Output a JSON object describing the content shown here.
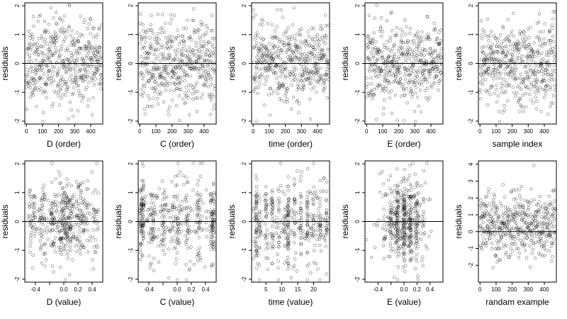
{
  "chart_data": [
    {
      "type": "scatter",
      "xlabel": "D (order)",
      "ylabel": "residuals",
      "xlim": [
        -10,
        475
      ],
      "ylim": [
        -2.1,
        2.1
      ],
      "xticks": [
        0,
        100,
        200,
        300,
        400
      ],
      "xtick_labels": [
        "0",
        "100",
        "200",
        "300",
        "400"
      ],
      "yticks": [
        -2,
        -1,
        0,
        1,
        2
      ],
      "ytick_labels": [
        "-2",
        "-1",
        "0",
        "1",
        "2"
      ],
      "hline": 0,
      "n_points": 470,
      "gen": {
        "kind": "index",
        "seed": 11,
        "sd": 0.72
      }
    },
    {
      "type": "scatter",
      "xlabel": "C (order)",
      "ylabel": "residuals",
      "xlim": [
        -10,
        475
      ],
      "ylim": [
        -2.1,
        2.1
      ],
      "xticks": [
        0,
        100,
        200,
        300,
        400
      ],
      "xtick_labels": [
        "0",
        "100",
        "200",
        "300",
        "400"
      ],
      "yticks": [
        -2,
        -1,
        0,
        1,
        2
      ],
      "ytick_labels": [
        "-2",
        "-1",
        "0",
        "1",
        "2"
      ],
      "hline": 0,
      "n_points": 470,
      "gen": {
        "kind": "index",
        "seed": 12,
        "sd": 0.72
      }
    },
    {
      "type": "scatter",
      "xlabel": "time (order)",
      "ylabel": "residuals",
      "xlim": [
        -10,
        475
      ],
      "ylim": [
        -2.1,
        2.1
      ],
      "xticks": [
        0,
        100,
        200,
        300,
        400
      ],
      "xtick_labels": [
        "0",
        "100",
        "200",
        "300",
        "400"
      ],
      "yticks": [
        -2,
        -1,
        0,
        1,
        2
      ],
      "ytick_labels": [
        "-2",
        "-1",
        "0",
        "1",
        "2"
      ],
      "hline": 0,
      "n_points": 470,
      "gen": {
        "kind": "index",
        "seed": 13,
        "sd": 0.72
      }
    },
    {
      "type": "scatter",
      "xlabel": "E (order)",
      "ylabel": "residuals",
      "xlim": [
        -10,
        475
      ],
      "ylim": [
        -2.1,
        2.1
      ],
      "xticks": [
        0,
        100,
        200,
        300,
        400
      ],
      "xtick_labels": [
        "0",
        "100",
        "200",
        "300",
        "400"
      ],
      "yticks": [
        -2,
        -1,
        0,
        1,
        2
      ],
      "ytick_labels": [
        "-2",
        "-1",
        "0",
        "1",
        "2"
      ],
      "hline": 0,
      "n_points": 470,
      "gen": {
        "kind": "index",
        "seed": 14,
        "sd": 0.72
      }
    },
    {
      "type": "scatter",
      "xlabel": "sample index",
      "ylabel": "residuals",
      "xlim": [
        -10,
        475
      ],
      "ylim": [
        -2.1,
        2.1
      ],
      "xticks": [
        0,
        100,
        200,
        300,
        400
      ],
      "xtick_labels": [
        "0",
        "100",
        "200",
        "300",
        "400"
      ],
      "yticks": [
        -2,
        -1,
        0,
        1,
        2
      ],
      "ytick_labels": [
        "-2",
        "-1",
        "0",
        "1",
        "2"
      ],
      "hline": 0,
      "n_points": 470,
      "gen": {
        "kind": "index",
        "seed": 15,
        "sd": 0.72
      }
    },
    {
      "type": "scatter",
      "xlabel": "D (value)",
      "ylabel": "residuals",
      "xlim": [
        -0.55,
        0.55
      ],
      "ylim": [
        -2.1,
        2.1
      ],
      "xticks": [
        -0.4,
        -0.2,
        0.0,
        0.2,
        0.4
      ],
      "xtick_labels": [
        "-0.4",
        "",
        "0.0",
        "0.2",
        "0.4"
      ],
      "yticks": [
        -2,
        -1,
        0,
        1,
        2
      ],
      "ytick_labels": [
        "-2",
        "-1",
        "0",
        "1",
        "2"
      ],
      "hline": 0,
      "n_points": 470,
      "gen": {
        "kind": "value_D",
        "seed": 21,
        "sd": 0.72
      }
    },
    {
      "type": "scatter",
      "xlabel": "C (value)",
      "ylabel": "residuals",
      "xlim": [
        -0.55,
        0.55
      ],
      "ylim": [
        -2.1,
        2.1
      ],
      "xticks": [
        -0.4,
        -0.2,
        0.0,
        0.2,
        0.4
      ],
      "xtick_labels": [
        "-0.4",
        "",
        "0.0",
        "0.2",
        "0.4"
      ],
      "yticks": [
        -2,
        -1,
        0,
        1,
        2
      ],
      "ytick_labels": [
        "-2",
        "-1",
        "0",
        "1",
        "2"
      ],
      "hline": 0,
      "n_points": 470,
      "gen": {
        "kind": "value_C",
        "seed": 22,
        "sd": 0.72
      }
    },
    {
      "type": "scatter",
      "xlabel": "time (value)",
      "ylabel": "residuals",
      "xlim": [
        0.5,
        25
      ],
      "ylim": [
        -2.1,
        2.1
      ],
      "xticks": [
        5,
        10,
        15,
        20
      ],
      "xtick_labels": [
        "5",
        "10",
        "15",
        "20"
      ],
      "yticks": [
        -2,
        -1,
        0,
        1,
        2
      ],
      "ytick_labels": [
        "-2",
        "-1",
        "0",
        "1",
        "2"
      ],
      "hline": 0,
      "n_points": 470,
      "gen": {
        "kind": "value_time",
        "seed": 23,
        "sd": 0.72
      }
    },
    {
      "type": "scatter",
      "xlabel": "E (value)",
      "ylabel": "residuals",
      "xlim": [
        -0.6,
        0.6
      ],
      "ylim": [
        -2.1,
        2.1
      ],
      "xticks": [
        -0.4,
        -0.2,
        0.0,
        0.2,
        0.4
      ],
      "xtick_labels": [
        "-0.4",
        "",
        "0.0",
        "0.2",
        "0.4"
      ],
      "yticks": [
        -2,
        -1,
        0,
        1,
        2
      ],
      "ytick_labels": [
        "-2",
        "-1",
        "0",
        "1",
        "2"
      ],
      "hline": 0,
      "n_points": 470,
      "gen": {
        "kind": "value_E",
        "seed": 24,
        "sd": 0.72
      }
    },
    {
      "type": "scatter",
      "xlabel": "randam example",
      "ylabel": "residuals",
      "xlim": [
        -10,
        475
      ],
      "ylim": [
        -3.0,
        4.2
      ],
      "xticks": [
        0,
        100,
        200,
        300,
        400
      ],
      "xtick_labels": [
        "0",
        "100",
        "200",
        "300",
        "400"
      ],
      "yticks": [
        -2,
        -1,
        0,
        1,
        2,
        3,
        4
      ],
      "ytick_labels": [
        "-2",
        "-1",
        "0",
        "1",
        "2",
        "3",
        "4"
      ],
      "hline": 0,
      "n_points": 470,
      "gen": {
        "kind": "index",
        "seed": 25,
        "sd": 0.95,
        "mean": 0.35
      }
    }
  ]
}
